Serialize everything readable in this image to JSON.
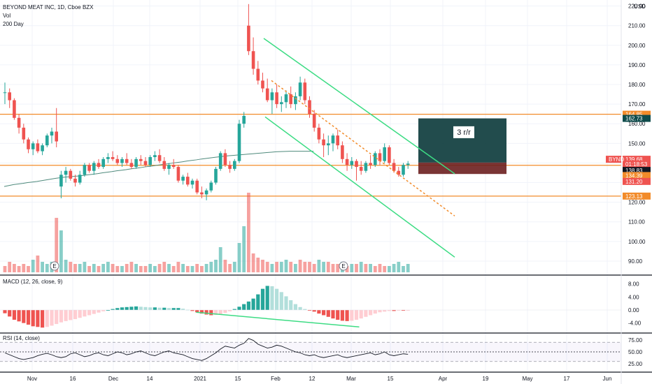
{
  "header": {
    "symbol_line": "BEYOND MEAT INC, 1D, Cboe BZX",
    "vol_label": "Vol",
    "ma_label": "200 Day"
  },
  "chart_data": {
    "type": "candlestick",
    "ticker": "BYND",
    "currency": "USD",
    "price_axis": {
      "min": 85,
      "max": 222,
      "ticks": [
        "220.00",
        "210.00",
        "200.00",
        "190.00",
        "180.00",
        "170.00",
        "160.00",
        "150.00",
        "140.00",
        "130.00",
        "120.00",
        "110.00",
        "100.00",
        "90.00"
      ]
    },
    "x_labels": [
      "Nov",
      "16",
      "Dec",
      "14",
      "2021",
      "15",
      "Feb",
      "12",
      "Mar",
      "15",
      "Apr",
      "19",
      "May",
      "17",
      "Jun"
    ],
    "candles": [
      [
        176,
        181,
        170,
        176
      ],
      [
        176,
        178,
        168,
        172
      ],
      [
        172,
        173,
        162,
        163
      ],
      [
        163,
        165,
        155,
        158
      ],
      [
        158,
        160,
        150,
        152
      ],
      [
        152,
        153,
        145,
        147
      ],
      [
        147,
        151,
        144,
        150
      ],
      [
        150,
        152,
        145,
        146
      ],
      [
        146,
        150,
        144,
        149
      ],
      [
        149,
        155,
        148,
        154
      ],
      [
        154,
        158,
        150,
        156
      ],
      [
        156,
        168,
        148,
        151
      ],
      [
        128,
        136,
        122,
        134
      ],
      [
        134,
        138,
        130,
        136
      ],
      [
        136,
        137,
        131,
        132
      ],
      [
        132,
        134,
        128,
        130
      ],
      [
        130,
        136,
        129,
        134
      ],
      [
        134,
        140,
        133,
        139
      ],
      [
        139,
        140,
        135,
        136
      ],
      [
        136,
        141,
        134,
        140
      ],
      [
        140,
        142,
        137,
        138
      ],
      [
        138,
        143,
        137,
        142
      ],
      [
        142,
        145,
        140,
        143
      ],
      [
        143,
        146,
        141,
        142
      ],
      [
        142,
        144,
        139,
        140
      ],
      [
        140,
        143,
        138,
        142
      ],
      [
        142,
        145,
        139,
        140
      ],
      [
        140,
        142,
        137,
        138
      ],
      [
        138,
        143,
        137,
        142
      ],
      [
        142,
        144,
        139,
        141
      ],
      [
        141,
        143,
        138,
        139
      ],
      [
        139,
        144,
        138,
        143
      ],
      [
        143,
        146,
        141,
        144
      ],
      [
        144,
        147,
        140,
        141
      ],
      [
        141,
        143,
        136,
        137
      ],
      [
        137,
        140,
        134,
        139
      ],
      [
        139,
        142,
        137,
        138
      ],
      [
        138,
        139,
        130,
        131
      ],
      [
        131,
        134,
        129,
        133
      ],
      [
        133,
        135,
        128,
        129
      ],
      [
        129,
        132,
        127,
        131
      ],
      [
        131,
        132,
        124,
        125
      ],
      [
        125,
        128,
        122,
        124
      ],
      [
        124,
        127,
        121,
        126
      ],
      [
        126,
        131,
        125,
        130
      ],
      [
        130,
        138,
        129,
        137
      ],
      [
        137,
        146,
        136,
        145
      ],
      [
        145,
        147,
        138,
        139
      ],
      [
        139,
        141,
        135,
        137
      ],
      [
        137,
        142,
        136,
        141
      ],
      [
        141,
        162,
        140,
        160
      ],
      [
        160,
        166,
        158,
        164
      ],
      [
        210,
        221,
        195,
        197
      ],
      [
        197,
        204,
        185,
        188
      ],
      [
        188,
        192,
        180,
        182
      ],
      [
        182,
        186,
        176,
        178
      ],
      [
        178,
        183,
        171,
        172
      ],
      [
        172,
        178,
        165,
        176
      ],
      [
        176,
        180,
        168,
        170
      ],
      [
        170,
        174,
        166,
        171
      ],
      [
        171,
        177,
        168,
        175
      ],
      [
        175,
        179,
        168,
        170
      ],
      [
        170,
        176,
        167,
        174
      ],
      [
        174,
        184,
        172,
        181
      ],
      [
        181,
        183,
        170,
        172
      ],
      [
        172,
        174,
        163,
        165
      ],
      [
        165,
        167,
        156,
        158
      ],
      [
        158,
        160,
        150,
        152
      ],
      [
        152,
        155,
        143,
        149
      ],
      [
        149,
        154,
        144,
        150
      ],
      [
        150,
        155,
        146,
        154
      ],
      [
        154,
        157,
        147,
        149
      ],
      [
        149,
        151,
        140,
        142
      ],
      [
        142,
        145,
        136,
        139
      ],
      [
        139,
        143,
        137,
        141
      ],
      [
        141,
        142,
        131,
        138
      ],
      [
        138,
        141,
        134,
        136
      ],
      [
        136,
        141,
        135,
        140
      ],
      [
        140,
        144,
        137,
        139
      ],
      [
        139,
        146,
        138,
        145
      ],
      [
        145,
        147,
        139,
        141
      ],
      [
        141,
        150,
        140,
        148
      ],
      [
        148,
        149,
        139,
        140
      ],
      [
        140,
        142,
        135,
        136
      ],
      [
        136,
        138,
        133,
        134
      ],
      [
        134,
        140,
        133,
        139
      ],
      [
        139,
        141,
        137,
        139.68
      ]
    ],
    "volume": [
      3,
      5,
      4,
      3,
      4,
      3,
      6,
      8,
      5,
      4,
      5,
      26,
      20,
      6,
      5,
      4,
      4,
      5,
      3,
      4,
      3,
      4,
      5,
      4,
      3,
      3,
      4,
      5,
      4,
      3,
      3,
      4,
      3,
      4,
      5,
      4,
      3,
      5,
      4,
      3,
      3,
      4,
      3,
      4,
      5,
      6,
      12,
      6,
      4,
      5,
      14,
      22,
      38,
      9,
      7,
      6,
      5,
      4,
      5,
      5,
      6,
      5,
      4,
      6,
      5,
      5,
      4,
      6,
      5,
      5,
      4,
      4,
      5,
      3,
      4,
      4,
      5,
      4,
      4,
      3,
      4,
      3,
      3,
      4,
      5,
      3,
      4
    ],
    "volume_up": [
      false,
      false,
      false,
      false,
      false,
      false,
      true,
      false,
      true,
      true,
      true,
      false,
      true,
      true,
      false,
      false,
      true,
      true,
      false,
      true,
      false,
      true,
      true,
      false,
      false,
      true,
      false,
      false,
      true,
      false,
      false,
      true,
      true,
      false,
      false,
      true,
      false,
      false,
      true,
      false,
      true,
      false,
      false,
      true,
      true,
      true,
      true,
      false,
      false,
      true,
      true,
      true,
      false,
      false,
      false,
      false,
      false,
      true,
      false,
      true,
      true,
      false,
      true,
      false,
      false,
      false,
      false,
      true,
      true,
      false,
      false,
      false,
      true,
      false,
      true,
      false,
      true,
      false,
      true,
      false,
      false,
      false,
      true,
      true,
      true,
      true,
      true
    ],
    "ma200": [
      128,
      128.5,
      129,
      129.3,
      129.6,
      130,
      130.3,
      130.6,
      131,
      131.4,
      131.8,
      132.2,
      132.5,
      132.8,
      133,
      133.2,
      133.4,
      133.7,
      134,
      134.3,
      134.6,
      135,
      135.3,
      135.6,
      136,
      136.3,
      136.6,
      137,
      137.3,
      137.6,
      138,
      138.3,
      138.6,
      139,
      139.3,
      139.6,
      140,
      140.3,
      140.6,
      141,
      141.3,
      141.6,
      142,
      142.3,
      142.6,
      142.9,
      143.2,
      143.5,
      143.7,
      143.9,
      144.1,
      144.3,
      144.5,
      144.7,
      144.9,
      145.1,
      145.3,
      145.5,
      145.7,
      145.8,
      145.9,
      146,
      146,
      146,
      146,
      146,
      146
    ],
    "levels": [
      {
        "price": 164.85,
        "label": "164.85",
        "color": "#f28b2a"
      },
      {
        "price": 138.83,
        "label": "138.83",
        "color": "#f28b2a"
      },
      {
        "price": 123.13,
        "label": "123.13",
        "color": "#f28b2a"
      }
    ],
    "price_tags": [
      {
        "price": 164.85,
        "label": "164.85",
        "bg": "#f28b2a",
        "fg": "#ffffff"
      },
      {
        "price": 162.73,
        "label": "162.73",
        "bg": "#0e4b4b",
        "fg": "#ffffff"
      },
      {
        "price": 141.9,
        "label": "139.68",
        "bg": "#ef5350",
        "fg": "#ffffff"
      },
      {
        "price": 139.5,
        "label": "01:18:53",
        "bg": "#ef5350",
        "fg": "#ffffff"
      },
      {
        "price": 136.2,
        "label": "138.83",
        "bg": "#131722",
        "fg": "#ffffff"
      },
      {
        "price": 133.6,
        "label": "134.39",
        "bg": "#f28b2a",
        "fg": "#ffffff"
      },
      {
        "price": 130.6,
        "label": "131.20",
        "bg": "#ef5350",
        "fg": "#ffffff"
      },
      {
        "price": 123.13,
        "label": "123.13",
        "bg": "#f28b2a",
        "fg": "#ffffff"
      }
    ],
    "ticker_tag": "BYND",
    "position_label": "3 r/r",
    "volume_axis": {
      "max": 40
    },
    "macd": {
      "label": "MACD (12, 26, close, 9)",
      "ticks": [
        "8.00",
        "4.00",
        "0.00",
        "-4.00"
      ],
      "min": -6,
      "max": 9,
      "hist": [
        -1,
        -2,
        -3,
        -3.5,
        -4,
        -4.5,
        -5,
        -5.2,
        -5.4,
        -5.2,
        -4.8,
        -4.3,
        -3.8,
        -3.4,
        -3.1,
        -2.8,
        -2.4,
        -2,
        -1.6,
        -1.2,
        -0.8,
        -0.4,
        0,
        0.3,
        0.6,
        0.8,
        0.9,
        1,
        1.1,
        1,
        0.9,
        0.8,
        0.8,
        0.7,
        0.7,
        0.6,
        0.6,
        0.6,
        0.4,
        0.1,
        -0.3,
        -0.7,
        -1.1,
        -1.4,
        -1.6,
        -1.5,
        -1.3,
        -0.9,
        -0.4,
        0.3,
        1,
        1.8,
        2.6,
        3.5,
        4.8,
        6.5,
        7.4,
        7.3,
        6.5,
        5.5,
        4.2,
        3,
        1.8,
        0.9,
        0.3,
        -0.2,
        -0.5,
        -1.1,
        -1.6,
        -2.1,
        -2.6,
        -3,
        -3.3,
        -3.4,
        -3.3,
        -3,
        -2.6,
        -2.1,
        -1.6,
        -1.1,
        -0.7,
        -0.5,
        -0.3,
        -0.3,
        -0.2,
        -0.2,
        -0.1
      ],
      "macd_line": [
        -1.5,
        -2,
        -2.5,
        -3,
        -3.4,
        -3.8,
        -4.1,
        -4.3,
        -4.4,
        -4.4,
        -4.3,
        -4.1,
        -3.8,
        -3.5,
        -3.1,
        -2.8,
        -2.5,
        -2.2,
        -1.9,
        -1.6,
        -1.2,
        -0.8,
        -0.4,
        0,
        0.3,
        0.5,
        0.6,
        0.7,
        0.7,
        0.7,
        0.6,
        0.5,
        0.4,
        0.4,
        0.3,
        0.3,
        0.2,
        0.1,
        -0.2,
        -0.5,
        -0.9,
        -1.2,
        -1.5,
        -1.7,
        -1.8,
        -1.7,
        -1.5,
        -1.2,
        -0.8,
        -0.3,
        0.3,
        1,
        1.8,
        2.8,
        4,
        5.3,
        6.2,
        6.6,
        6.4,
        5.8,
        5,
        4.1,
        3.2,
        2.3,
        1.5,
        0.8,
        0.2,
        -0.4,
        -1,
        -1.5,
        -2,
        -2.4,
        -2.7,
        -2.9,
        -2.9,
        -2.8,
        -2.5,
        -2.1,
        -1.7,
        -1.3,
        -0.9,
        -0.6,
        -0.4,
        -0.3,
        -0.2,
        -0.1,
        0
      ],
      "divergence_line": {
        "from": [
          52,
          -0.7
        ],
        "to": [
          95,
          -5.2
        ]
      }
    },
    "rsi": {
      "label": "RSI (14, close)",
      "ticks": [
        "75.00",
        "50.00",
        "25.00"
      ],
      "min": 15,
      "max": 85,
      "upper": 70,
      "lower": 30,
      "mid": 50,
      "values": [
        48,
        44,
        40,
        36,
        34,
        36,
        38,
        42,
        45,
        47,
        44,
        40,
        38,
        40,
        46,
        48,
        44,
        40,
        42,
        46,
        48,
        44,
        42,
        46,
        50,
        48,
        44,
        46,
        50,
        52,
        48,
        44,
        42,
        46,
        50,
        52,
        48,
        46,
        44,
        40,
        36,
        34,
        32,
        36,
        42,
        48,
        56,
        62,
        60,
        58,
        64,
        68,
        78,
        74,
        66,
        62,
        58,
        60,
        64,
        62,
        58,
        54,
        50,
        48,
        44,
        42,
        44,
        40,
        38,
        40,
        42,
        44,
        40,
        38,
        40,
        42,
        44,
        46,
        48,
        44,
        46,
        50,
        44,
        42,
        44,
        46,
        45
      ]
    }
  }
}
